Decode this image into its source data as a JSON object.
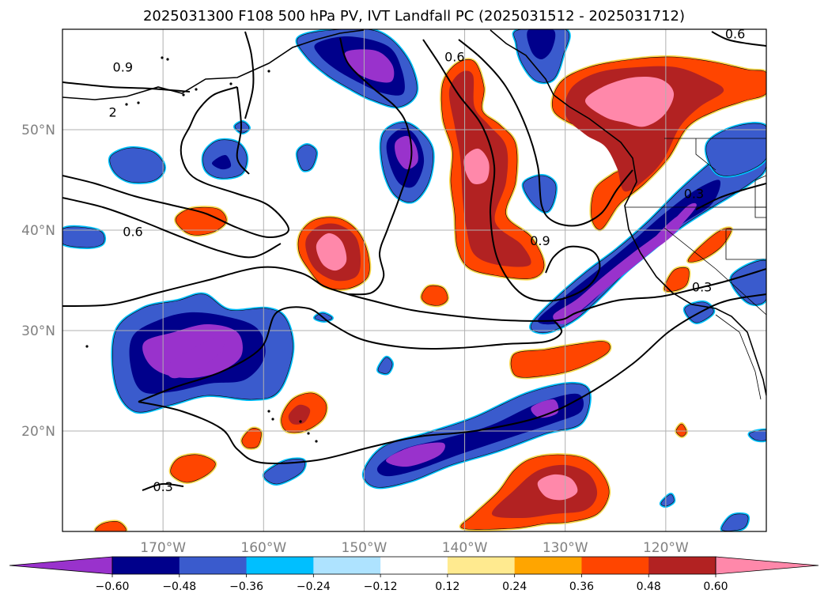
{
  "title": "2025031300 F108 500 hPa PV, IVT Landfall PC (2025031512 - 2025031712)",
  "map": {
    "projection": "PlateCarree",
    "lon_range": [
      -180,
      -110
    ],
    "lat_range": [
      10,
      60
    ],
    "lon_ticks": [
      {
        "value": -170,
        "label": "170°W"
      },
      {
        "value": -160,
        "label": "160°W"
      },
      {
        "value": -150,
        "label": "150°W"
      },
      {
        "value": -140,
        "label": "140°W"
      },
      {
        "value": -130,
        "label": "130°W"
      },
      {
        "value": -120,
        "label": "120°W"
      }
    ],
    "lat_ticks": [
      {
        "value": 20,
        "label": "20°N"
      },
      {
        "value": 30,
        "label": "30°N"
      },
      {
        "value": 40,
        "label": "40°N"
      },
      {
        "value": 50,
        "label": "50°N"
      }
    ],
    "grid": true,
    "contour_labels": [
      {
        "text": "0.9",
        "lon": -174,
        "lat": 55.8
      },
      {
        "text": "0.6",
        "lon": -173,
        "lat": 39.4
      },
      {
        "text": "0.3",
        "lon": -170,
        "lat": 14.0
      },
      {
        "text": "0.6",
        "lon": -141,
        "lat": 56.8
      },
      {
        "text": "0.9",
        "lon": -132.5,
        "lat": 38.5
      },
      {
        "text": "0.3",
        "lon": -117.2,
        "lat": 43.2
      },
      {
        "text": "0.3",
        "lon": -116.4,
        "lat": 33.9
      },
      {
        "text": "0.6",
        "lon": -113.1,
        "lat": 59.1
      },
      {
        "text": "2",
        "lon": -175,
        "lat": 51.3
      }
    ]
  },
  "colorbar": {
    "levels": [
      "−0.60",
      "−0.48",
      "−0.36",
      "−0.24",
      "−0.12",
      "0.12",
      "0.24",
      "0.36",
      "0.48",
      "0.60"
    ],
    "colors": [
      "#9932cc",
      "#00008b",
      "#3a5bcd",
      "#00bfff",
      "#aee3ff",
      "#ffffff",
      "#ffea8f",
      "#ffa500",
      "#ff4500",
      "#b22222",
      "#ff88aa"
    ],
    "extend": "both"
  },
  "colors": {
    "neg_outer": "#00bfff",
    "neg_1": "#3a5bcd",
    "neg_2": "#00008b",
    "neg_3": "#9932cc",
    "pos_outer": "#ffd84d",
    "pos_1": "#ff4500",
    "pos_2": "#b22222",
    "pos_3": "#ff88aa"
  }
}
